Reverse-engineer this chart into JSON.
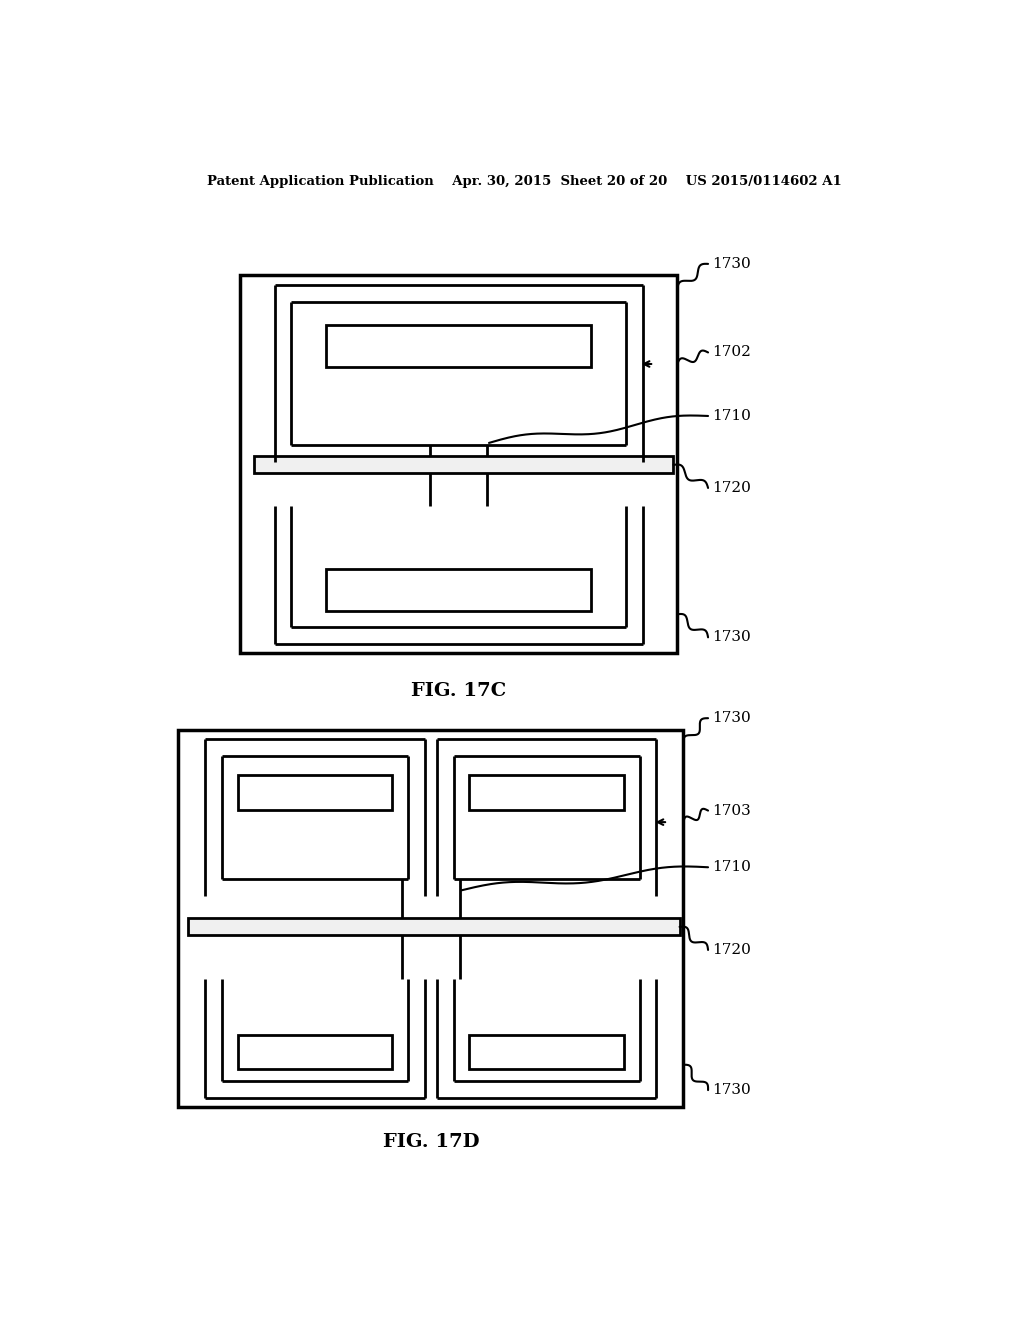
{
  "bg_color": "#ffffff",
  "line_color": "#000000",
  "lw": 2.0,
  "lw_thick": 2.5,
  "header": "Patent Application Publication    Apr. 30, 2015  Sheet 20 of 20    US 2015/0114602 A1",
  "fig17c_label": "FIG. 17C",
  "fig17d_label": "FIG. 17D",
  "label_1730": "1730",
  "label_1702": "1702",
  "label_1710": "1710",
  "label_1720": "1720",
  "label_1703": "1703"
}
